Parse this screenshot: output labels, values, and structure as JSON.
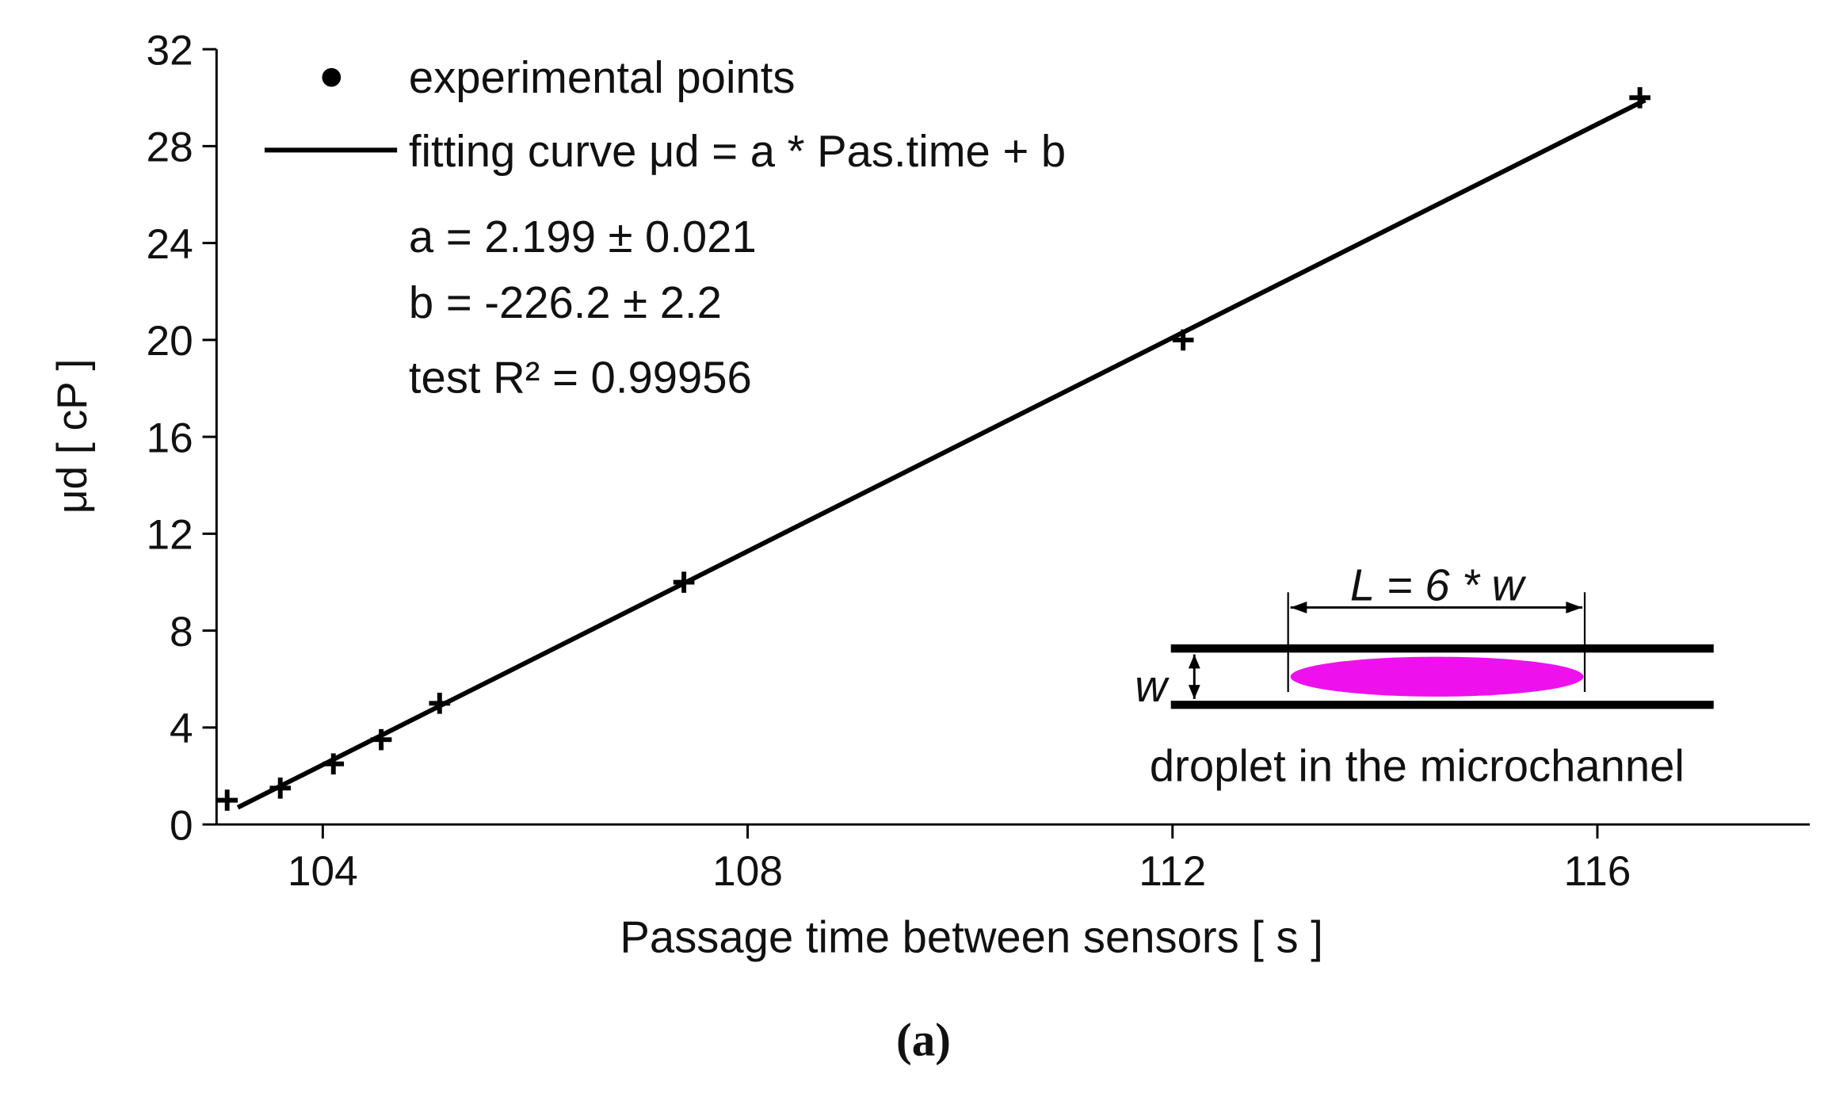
{
  "chart_data": {
    "type": "scatter",
    "x_label": "Passage time between sensors [ s ]",
    "y_label": "μd [ cP ]",
    "xlim": [
      103,
      118
    ],
    "xticks": [
      104,
      108,
      112,
      116
    ],
    "ylim": [
      0,
      32
    ],
    "yticks": [
      0,
      4,
      8,
      12,
      16,
      20,
      24,
      28,
      32
    ],
    "series": [
      {
        "name": "experimental points",
        "type": "scatter",
        "color": "#000000",
        "x": [
          103.1,
          103.6,
          104.1,
          104.55,
          105.1,
          107.4,
          112.1,
          116.4
        ],
        "values": [
          1,
          1.5,
          2.5,
          3.5,
          5,
          10,
          20,
          30
        ]
      },
      {
        "name": "fitting curve μd = a * Pas.time + b",
        "type": "line",
        "color": "#000000",
        "x": [
          103.2,
          116.45
        ],
        "values": [
          0.7,
          29.9
        ]
      }
    ],
    "annotations": [
      "a = 2.199 ± 0.021",
      "b = -226.2 ± 2.2",
      "test R² = 0.99956"
    ],
    "inset": {
      "length_label": "L = 6 * w",
      "width_label": "w",
      "caption": "droplet in the microchannel"
    },
    "caption": "(a)"
  }
}
